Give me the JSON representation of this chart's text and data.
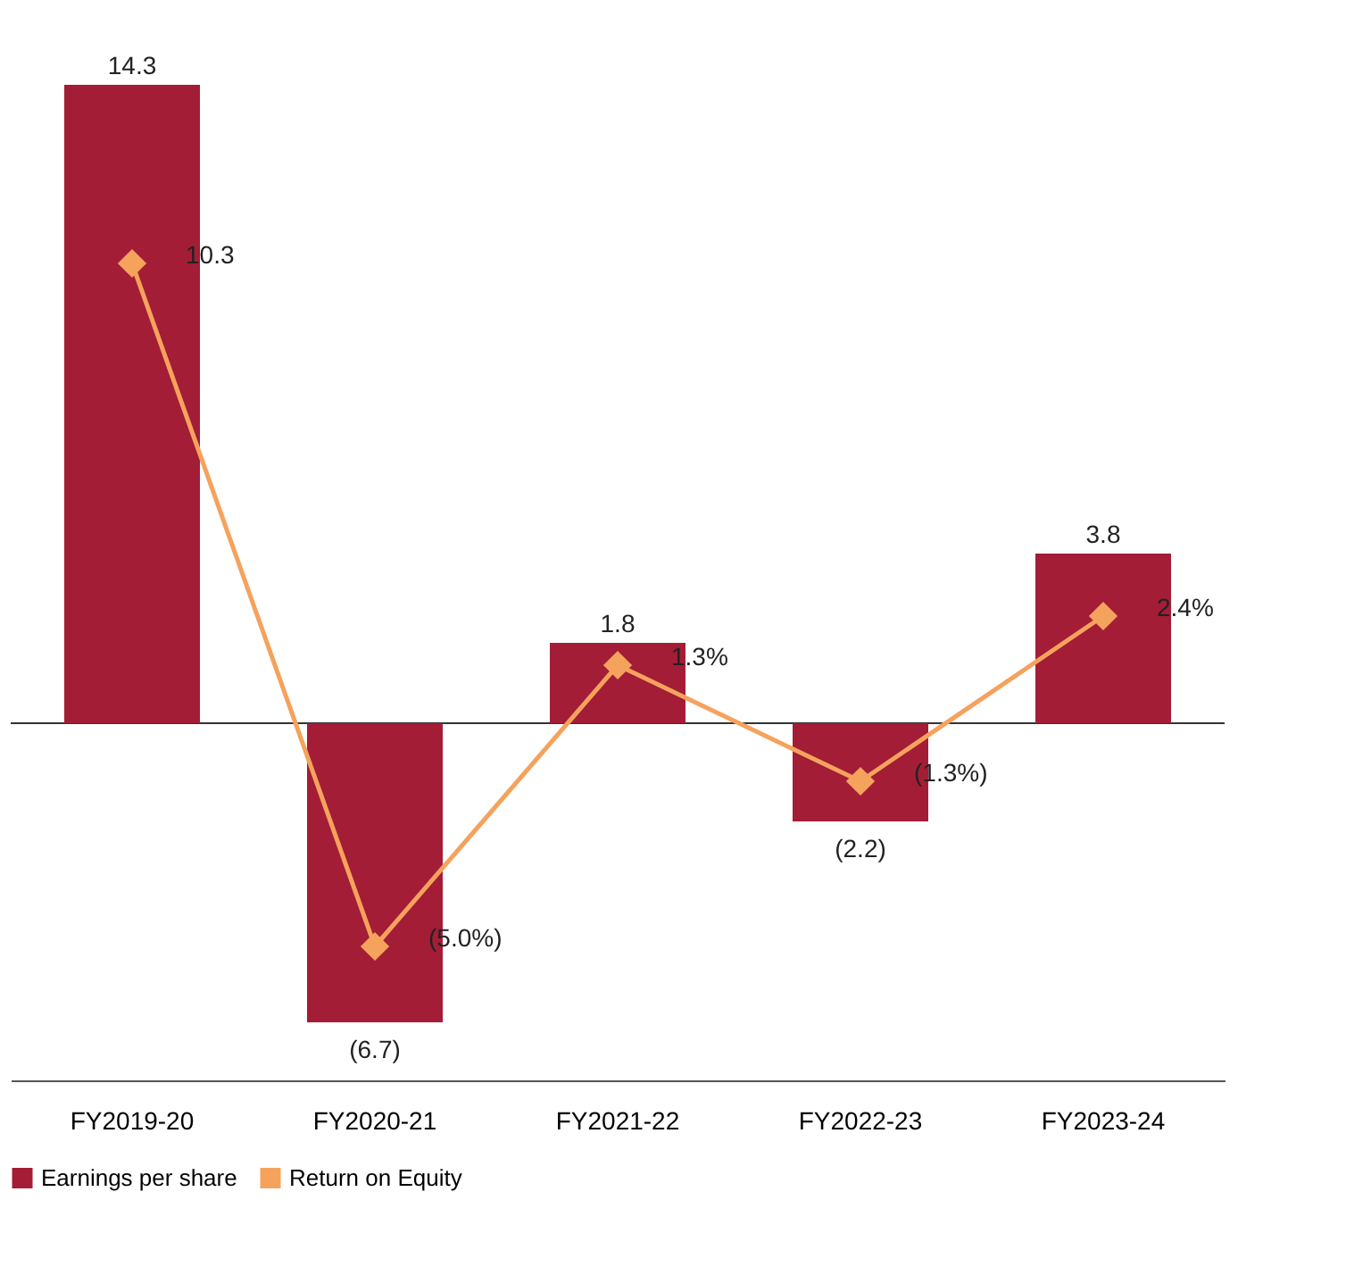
{
  "chart_data": {
    "type": "bar",
    "categories": [
      "FY2019-20",
      "FY2020-21",
      "FY2021-22",
      "FY2022-23",
      "FY2023-24"
    ],
    "series": [
      {
        "name": "Earnings per share",
        "color": "#a31d36",
        "values": [
          14.3,
          -6.7,
          1.8,
          -2.2,
          3.8
        ],
        "value_labels": [
          "14.3",
          "(6.7)",
          "1.8",
          "(2.2)",
          "3.8"
        ]
      },
      {
        "name": "Return on Equity",
        "type": "line",
        "color": "#f5a25d",
        "values": [
          10.3,
          -5.0,
          1.3,
          -1.3,
          2.4
        ],
        "value_labels": [
          "10.3",
          "(5.0%)",
          "1.3%",
          "(1.3%)",
          "2.4%"
        ]
      }
    ],
    "tick_labels": "x",
    "grid": false,
    "legend": "bottom",
    "marker": "diamond",
    "line_style": "solid",
    "ref_lines": [
      {
        "axis": "y",
        "value": 0,
        "color": "#333333"
      }
    ]
  }
}
